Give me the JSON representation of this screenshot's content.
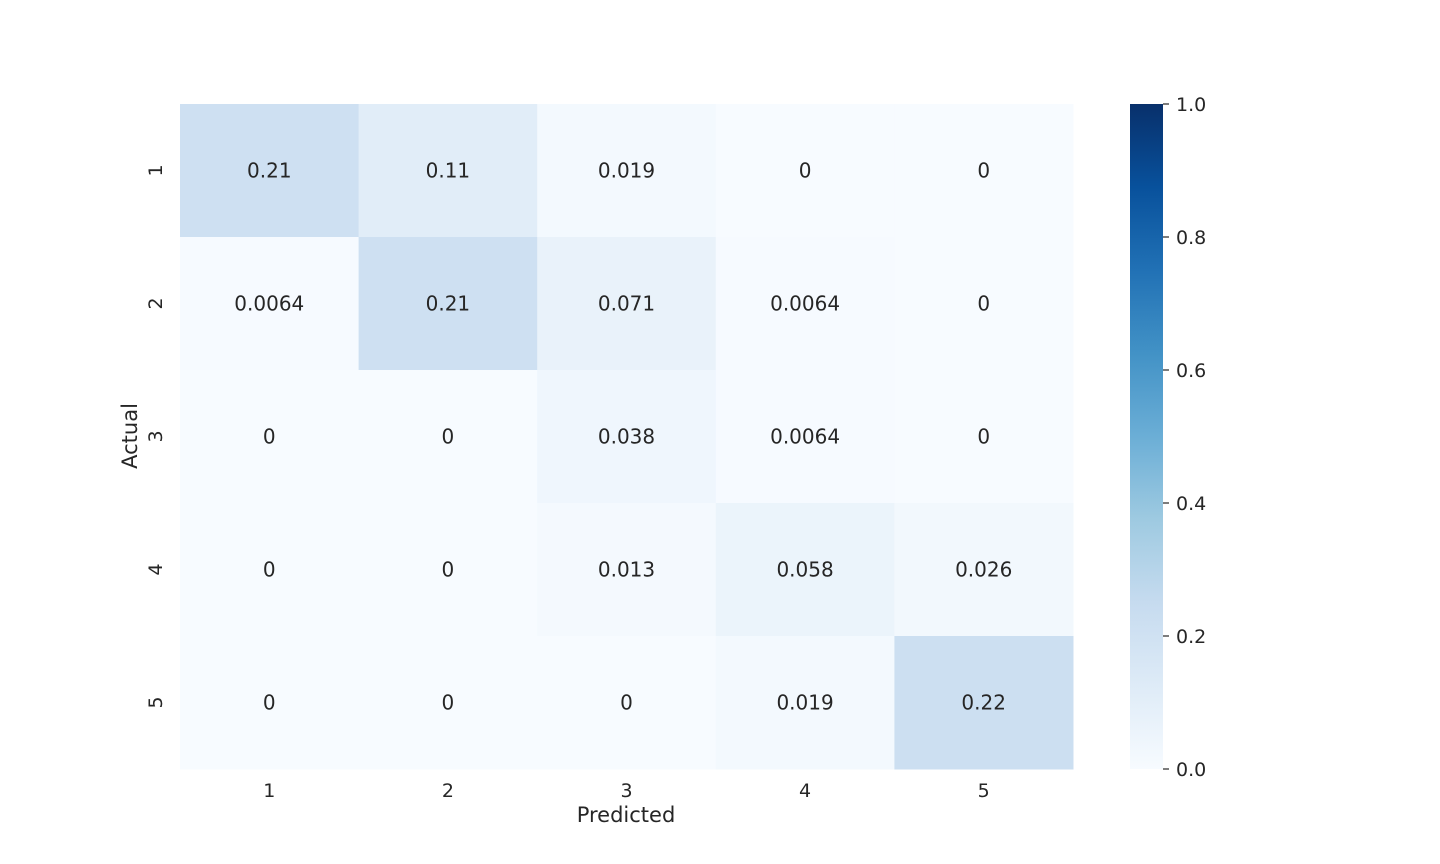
{
  "chart_data": {
    "type": "heatmap",
    "title": "",
    "xlabel": "Predicted",
    "ylabel": "Actual",
    "x_categories": [
      "1",
      "2",
      "3",
      "4",
      "5"
    ],
    "y_categories": [
      "1",
      "2",
      "3",
      "4",
      "5"
    ],
    "values": [
      [
        0.21,
        0.11,
        0.019,
        0,
        0
      ],
      [
        0.0064,
        0.21,
        0.071,
        0.0064,
        0
      ],
      [
        0,
        0,
        0.038,
        0.0064,
        0
      ],
      [
        0,
        0,
        0.013,
        0.058,
        0.026
      ],
      [
        0,
        0,
        0,
        0.019,
        0.22
      ]
    ],
    "value_labels": [
      [
        "0.21",
        "0.11",
        "0.019",
        "0",
        "0"
      ],
      [
        "0.0064",
        "0.21",
        "0.071",
        "0.0064",
        "0"
      ],
      [
        "0",
        "0",
        "0.038",
        "0.0064",
        "0"
      ],
      [
        "0",
        "0",
        "0.013",
        "0.058",
        "0.026"
      ],
      [
        "0",
        "0",
        "0",
        "0.019",
        "0.22"
      ]
    ],
    "colorbar": {
      "range": [
        0.0,
        1.0
      ],
      "ticks": [
        0.0,
        0.2,
        0.4,
        0.6,
        0.8,
        1.0
      ],
      "tick_labels": [
        "0.0",
        "0.2",
        "0.4",
        "0.6",
        "0.8",
        "1.0"
      ],
      "colormap": "Blues"
    },
    "grid": false
  }
}
